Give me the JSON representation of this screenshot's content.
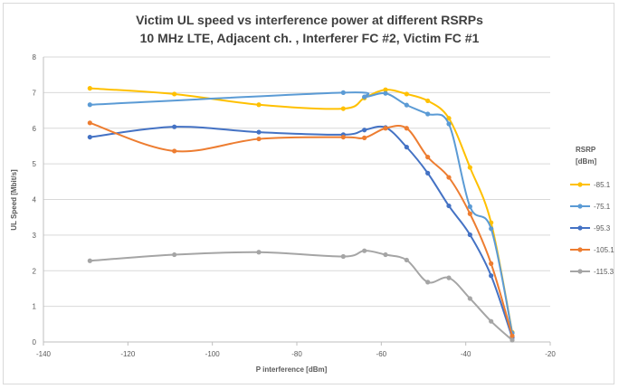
{
  "chart_data": {
    "type": "line",
    "title": "Victim UL speed vs interference power at different RSRPs",
    "subtitle": "10 MHz LTE, Adjacent ch. , Interferer FC #2, Victim FC #1",
    "xlabel": "P interference [dBm]",
    "ylabel": "UL Speed [Mbit/s]",
    "xlim": [
      -140,
      -20
    ],
    "ylim": [
      0,
      8
    ],
    "x_ticks": [
      "-140",
      "-120",
      "-100",
      "-80",
      "-60",
      "-40",
      "-20"
    ],
    "y_ticks": [
      "0",
      "1",
      "2",
      "3",
      "4",
      "5",
      "6",
      "7",
      "8"
    ],
    "grid": "horizontal",
    "legend_title": [
      "RSRP",
      "[dBm]"
    ],
    "legend_position": "right",
    "series": [
      {
        "name": "-85.1",
        "color": "#FFC000",
        "x": [
          -129,
          -109,
          -89,
          -69,
          -64,
          -59,
          -54,
          -49,
          -44,
          -39,
          -34,
          -29
        ],
        "y": [
          7.12,
          6.96,
          6.66,
          6.55,
          6.85,
          7.08,
          6.96,
          6.77,
          6.28,
          4.9,
          3.35,
          0.27
        ]
      },
      {
        "name": "-75.1",
        "color": "#5B9BD5",
        "x": [
          -129,
          -69,
          -64,
          -59,
          -54,
          -49,
          -44,
          -39,
          -34,
          -29
        ],
        "y": [
          6.66,
          7.0,
          6.88,
          6.98,
          6.65,
          6.4,
          6.12,
          3.8,
          3.18,
          0.25
        ]
      },
      {
        "name": "-95.3",
        "color": "#4472C4",
        "x": [
          -129,
          -109,
          -89,
          -69,
          -64,
          -59,
          -54,
          -49,
          -44,
          -39,
          -34,
          -29
        ],
        "y": [
          5.75,
          6.04,
          5.89,
          5.82,
          5.95,
          6.02,
          5.47,
          4.74,
          3.82,
          3.01,
          1.86,
          0.12
        ]
      },
      {
        "name": "-105.1",
        "color": "#ED7D31",
        "x": [
          -129,
          -109,
          -89,
          -69,
          -64,
          -59,
          -54,
          -49,
          -44,
          -39,
          -34,
          -29
        ],
        "y": [
          6.15,
          5.36,
          5.7,
          5.75,
          5.73,
          6.0,
          6.0,
          5.19,
          4.62,
          3.6,
          2.2,
          0.17
        ]
      },
      {
        "name": "-115.3",
        "color": "#A5A5A5",
        "x": [
          -129,
          -109,
          -89,
          -69,
          -64,
          -59,
          -54,
          -49,
          -44,
          -39,
          -34,
          -29
        ],
        "y": [
          2.28,
          2.45,
          2.52,
          2.4,
          2.56,
          2.45,
          2.3,
          1.68,
          1.8,
          1.22,
          0.58,
          0.05
        ]
      }
    ]
  }
}
